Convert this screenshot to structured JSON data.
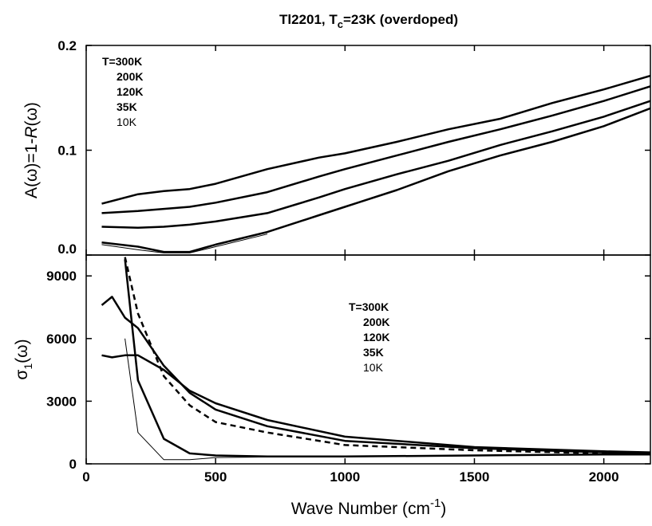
{
  "chart_data": [
    {
      "type": "line",
      "title_parts": [
        "Tl2201, T",
        "c",
        "=23K (overdoped)"
      ],
      "ylabel_parts": [
        "A(ω)=1-",
        "R",
        "(ω)"
      ],
      "x": [
        60,
        200,
        300,
        400,
        500,
        700,
        900,
        1000,
        1200,
        1400,
        1600,
        1800,
        2000,
        2180
      ],
      "xlim": [
        0,
        2180
      ],
      "xticks": [
        0,
        500,
        1000,
        1500,
        2000
      ],
      "ylim": [
        0,
        0.2
      ],
      "yticks": [
        {
          "value": 0,
          "label": "0.0"
        },
        0.1,
        0.2
      ],
      "legend": "upper left",
      "series": [
        {
          "name": "T=300K",
          "color": "#000000",
          "linewidth": 2.5,
          "style": "solid",
          "values": [
            0.049,
            0.058,
            0.061,
            0.063,
            0.068,
            0.082,
            0.093,
            0.097,
            0.108,
            0.12,
            0.13,
            0.145,
            0.158,
            0.171
          ]
        },
        {
          "name": "200K",
          "color": "#000000",
          "linewidth": 2.5,
          "style": "solid",
          "values": [
            0.04,
            0.042,
            0.044,
            0.046,
            0.05,
            0.06,
            0.075,
            0.082,
            0.095,
            0.108,
            0.12,
            0.133,
            0.147,
            0.161
          ]
        },
        {
          "name": "120K",
          "color": "#000000",
          "linewidth": 2.5,
          "style": "solid",
          "values": [
            0.027,
            0.026,
            0.027,
            0.029,
            0.032,
            0.04,
            0.055,
            0.063,
            0.077,
            0.09,
            0.105,
            0.118,
            0.132,
            0.147
          ]
        },
        {
          "name": "35K",
          "color": "#000000",
          "linewidth": 2.5,
          "style": "solid",
          "values": [
            0.012,
            0.008,
            0.003,
            0.003,
            0.01,
            0.022,
            0.038,
            0.046,
            0.062,
            0.08,
            0.095,
            0.108,
            0.123,
            0.14
          ]
        },
        {
          "name": "10K",
          "color": "#000000",
          "linewidth": 1,
          "style": "solid",
          "values": [
            0.01,
            0.005,
            0.002,
            0.002,
            0.008,
            0.02,
            null,
            null,
            null,
            null,
            null,
            null,
            null,
            null
          ]
        }
      ]
    },
    {
      "type": "line",
      "ylabel_parts": [
        "σ",
        "1",
        "(ω)"
      ],
      "xlabel_parts": [
        "Wave Number (cm",
        "-1",
        ")"
      ],
      "x": [
        60,
        100,
        150,
        200,
        300,
        400,
        500,
        700,
        1000,
        1500,
        2000,
        2180
      ],
      "xlim": [
        0,
        2180
      ],
      "xticks": [
        0,
        500,
        1000,
        1500,
        2000
      ],
      "ylim": [
        0,
        10000
      ],
      "yticks": [
        0,
        3000,
        6000,
        9000
      ],
      "legend": "upper center",
      "series": [
        {
          "name": "T=300K",
          "color": "#000000",
          "linewidth": 2.5,
          "style": "solid",
          "values": [
            5200,
            5100,
            5200,
            5200,
            4500,
            3500,
            2900,
            2100,
            1300,
            800,
            600,
            550
          ]
        },
        {
          "name": "200K",
          "color": "#000000",
          "linewidth": 2.5,
          "style": "solid",
          "values": [
            7600,
            8000,
            7000,
            6500,
            4700,
            3400,
            2600,
            1800,
            1100,
            750,
            550,
            500
          ]
        },
        {
          "name": "120K",
          "color": "#000000",
          "linewidth": 2.5,
          "style": "dashed",
          "values": [
            null,
            null,
            9900,
            7200,
            4200,
            2800,
            2000,
            1500,
            900,
            650,
            500,
            480
          ]
        },
        {
          "name": "35K",
          "color": "#000000",
          "linewidth": 2.5,
          "style": "solid",
          "values": [
            null,
            null,
            9800,
            4000,
            1200,
            500,
            400,
            350,
            350,
            400,
            450,
            450
          ]
        },
        {
          "name": "10K",
          "color": "#000000",
          "linewidth": 1,
          "style": "solid",
          "values": [
            null,
            null,
            6000,
            1500,
            200,
            200,
            300,
            330,
            340,
            390,
            440,
            450
          ]
        }
      ]
    }
  ]
}
